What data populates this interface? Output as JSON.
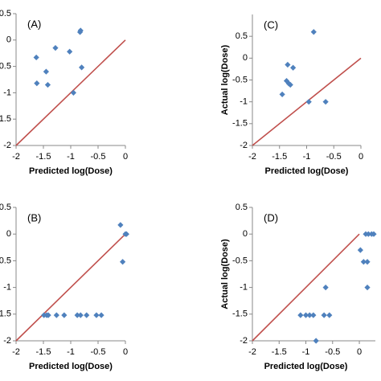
{
  "chart_data": [
    {
      "type": "scatter",
      "panel_label": "(A)",
      "xlabel": "Predicted log(Dose)",
      "color": "#4f81bd",
      "line_color": "#c0504d",
      "xlim": [
        -2,
        0
      ],
      "xticks": [
        -2,
        -1.5,
        -1,
        -0.5,
        0
      ],
      "ylim": [
        -2,
        0.5
      ],
      "yticks": [
        -2,
        -1.5,
        -1,
        -0.5,
        0,
        0.5
      ],
      "x": [
        -0.82,
        -0.83,
        -1.28,
        -1.02,
        -1.63,
        -1.45,
        -0.8,
        -1.62,
        -1.42,
        -0.95
      ],
      "values": [
        0.18,
        0.15,
        -0.15,
        -0.22,
        -0.33,
        -0.6,
        -0.52,
        -0.82,
        -0.85,
        -1.0
      ]
    },
    {
      "type": "scatter",
      "panel_label": "(B)",
      "xlabel": "Predicted log(Dose)",
      "color": "#4f81bd",
      "line_color": "#c0504d",
      "xlim": [
        -2,
        0
      ],
      "xticks": [
        -2,
        -1.5,
        -1,
        -0.5,
        0
      ],
      "ylim": [
        -2,
        0.5
      ],
      "yticks": [
        -2,
        -1.5,
        -1,
        -0.5,
        0,
        0.5
      ],
      "x": [
        -0.09,
        0,
        0.02,
        -0.05,
        -1.49,
        -1.44,
        -1.41,
        -1.26,
        -1.12,
        -0.88,
        -0.82,
        -0.71,
        -0.53,
        -0.44
      ],
      "values": [
        0.17,
        0,
        0,
        -0.52,
        -1.52,
        -1.52,
        -1.52,
        -1.52,
        -1.52,
        -1.52,
        -1.52,
        -1.52,
        -1.52,
        -1.52
      ]
    },
    {
      "type": "scatter",
      "panel_label": "(C)",
      "xlabel": "Predicted log(Dose)",
      "ylabel": "Actual log(Dose)",
      "color": "#4f81bd",
      "line_color": "#c0504d",
      "xlim": [
        -2,
        0
      ],
      "xticks": [
        -2,
        -1.5,
        -1,
        -0.5,
        0
      ],
      "ylim": [
        -2,
        1
      ],
      "yticks": [
        -2,
        -1.5,
        -1,
        -0.5,
        0,
        0.5
      ],
      "x": [
        -0.87,
        -1.35,
        -1.25,
        -1.37,
        -1.3,
        -1.33,
        -1.45,
        -0.96,
        -0.65
      ],
      "values": [
        0.6,
        -0.15,
        -0.22,
        -0.52,
        -0.61,
        -0.58,
        -0.83,
        -1.0,
        -1.0
      ]
    },
    {
      "type": "scatter",
      "panel_label": "(D)",
      "xlabel": "Predicted log(Dose)",
      "ylabel": "Actual log(Dose)",
      "color": "#4f81bd",
      "line_color": "#c0504d",
      "xlim": [
        -2,
        0.3
      ],
      "xticks": [
        -2,
        -1.5,
        -1,
        -0.5,
        0
      ],
      "ylim": [
        -2,
        0.5
      ],
      "yticks": [
        -2,
        -1.5,
        -1,
        -0.5,
        0,
        0.5
      ],
      "x": [
        0.12,
        0.17,
        0.23,
        0.27,
        0.02,
        0.08,
        0.15,
        0.15,
        -0.63,
        -1.1,
        -1.0,
        -0.93,
        -0.86,
        -0.66,
        -0.56,
        -0.81
      ],
      "values": [
        0,
        0,
        0,
        0,
        -0.3,
        -0.52,
        -0.52,
        -1.0,
        -1.0,
        -1.52,
        -1.52,
        -1.52,
        -1.52,
        -1.52,
        -1.52,
        -2.0
      ]
    }
  ]
}
